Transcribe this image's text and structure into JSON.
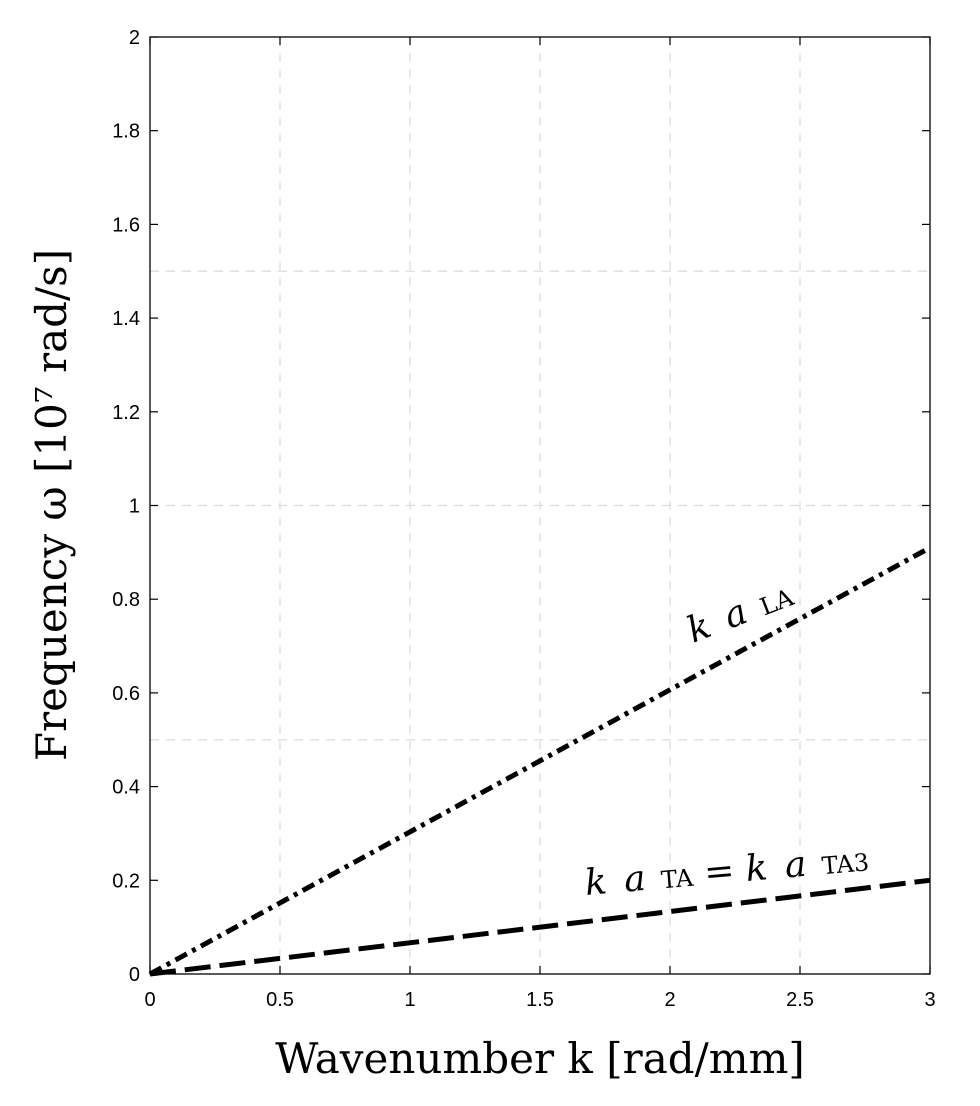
{
  "chart_data": {
    "type": "line",
    "title": "",
    "xlabel": "Wavenumber k [rad/mm]",
    "ylabel": "Frequency ω [10⁷ rad/s]",
    "xlim": [
      0,
      3
    ],
    "ylim": [
      0,
      2
    ],
    "x_ticks": [
      "0",
      "0.5",
      "1",
      "1.5",
      "2",
      "2.5",
      "3"
    ],
    "y_ticks": [
      "0",
      "0.2",
      "0.4",
      "0.6",
      "0.8",
      "1",
      "1.2",
      "1.4",
      "1.6",
      "1.8",
      "2"
    ],
    "grid": true,
    "grid_style": "dashed",
    "series": [
      {
        "name": "k a LA",
        "label_parts": {
          "k": "k",
          "a": "a",
          "sub": "LA"
        },
        "line_style": "dash-dot",
        "color": "#000000",
        "x": [
          0,
          3
        ],
        "y": [
          0,
          0.91
        ]
      },
      {
        "name": "k a TA = k a TA3",
        "label_parts": {
          "k": "k",
          "a": "a",
          "sub": "TA",
          "eq": " = ",
          "k2": "k",
          "a2": "a",
          "sub2": "TA3"
        },
        "line_style": "long-dash",
        "color": "#000000",
        "x": [
          0,
          3
        ],
        "y": [
          0,
          0.2
        ]
      }
    ]
  }
}
